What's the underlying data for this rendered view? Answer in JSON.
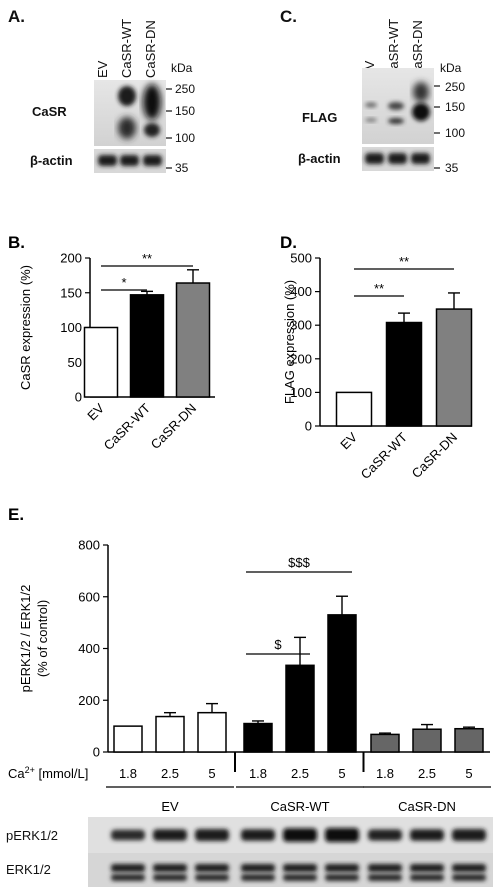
{
  "panels": {
    "a": {
      "letter": "A.",
      "lanes": [
        "EV",
        "CaSR-WT",
        "CaSR-DN"
      ],
      "kda_title": "kDa",
      "markers": [
        "250",
        "150",
        "100"
      ],
      "actin_marker": "35",
      "protein": "CaSR",
      "loading": "β-actin"
    },
    "c": {
      "letter": "C.",
      "lanes": [
        "EV",
        "CaSR-WT",
        "CaSR-DN"
      ],
      "kda_title": "kDa",
      "markers": [
        "250",
        "150",
        "100"
      ],
      "actin_marker": "35",
      "protein": "FLAG",
      "loading": "β-actin"
    },
    "e_blots": {
      "top": "pERK1/2",
      "bottom": "ERK1/2"
    }
  },
  "chart_data": [
    {
      "panel": "B.",
      "type": "bar",
      "ylabel": "CaSR expression (%)",
      "categories": [
        "EV",
        "CaSR-WT",
        "CaSR-DN"
      ],
      "values": [
        100,
        147,
        164
      ],
      "errors": [
        0,
        5,
        19
      ],
      "colors": [
        "#ffffff",
        "#000000",
        "#808080"
      ],
      "ylim": [
        0,
        200
      ],
      "yticks": [
        "0",
        "50",
        "100",
        "150",
        "200"
      ],
      "significance": [
        {
          "from": 0,
          "to": 1,
          "label": "*"
        },
        {
          "from": 0,
          "to": 2,
          "label": "**"
        }
      ]
    },
    {
      "panel": "D.",
      "type": "bar",
      "ylabel": "FLAG expression (%)",
      "categories": [
        "EV",
        "CaSR-WT",
        "CaSR-DN"
      ],
      "values": [
        100,
        308,
        348
      ],
      "errors": [
        0,
        28,
        48
      ],
      "colors": [
        "#ffffff",
        "#000000",
        "#808080"
      ],
      "ylim": [
        0,
        500
      ],
      "yticks": [
        "0",
        "100",
        "200",
        "300",
        "400",
        "500"
      ],
      "significance": [
        {
          "from": 0,
          "to": 1,
          "label": "**"
        },
        {
          "from": 0,
          "to": 2,
          "label": "**"
        }
      ]
    },
    {
      "panel": "E.",
      "type": "bar",
      "ylabel": [
        "pERK1/2 / ERK1/2",
        "(% of control)"
      ],
      "ylim": [
        0,
        800
      ],
      "yticks": [
        "0",
        "200",
        "400",
        "600",
        "800"
      ],
      "xlabel_prefix": "Ca2+ [mmol/L]",
      "groups": [
        {
          "name": "EV",
          "color": "#ffffff",
          "x": [
            "1.8",
            "2.5",
            "5"
          ],
          "values": [
            100,
            137,
            152
          ],
          "errors": [
            0,
            15,
            35
          ]
        },
        {
          "name": "CaSR-WT",
          "color": "#000000",
          "x": [
            "1.8",
            "2.5",
            "5"
          ],
          "values": [
            110,
            335,
            530
          ],
          "errors": [
            10,
            108,
            72
          ]
        },
        {
          "name": "CaSR-DN",
          "color": "#666666",
          "x": [
            "1.8",
            "2.5",
            "5"
          ],
          "values": [
            68,
            88,
            90
          ],
          "errors": [
            5,
            18,
            6
          ]
        }
      ],
      "significance": [
        {
          "group": 1,
          "from": 0,
          "to": 1,
          "label": "$"
        },
        {
          "group": 1,
          "from": 0,
          "to": 2,
          "label": "$$$"
        }
      ]
    }
  ]
}
